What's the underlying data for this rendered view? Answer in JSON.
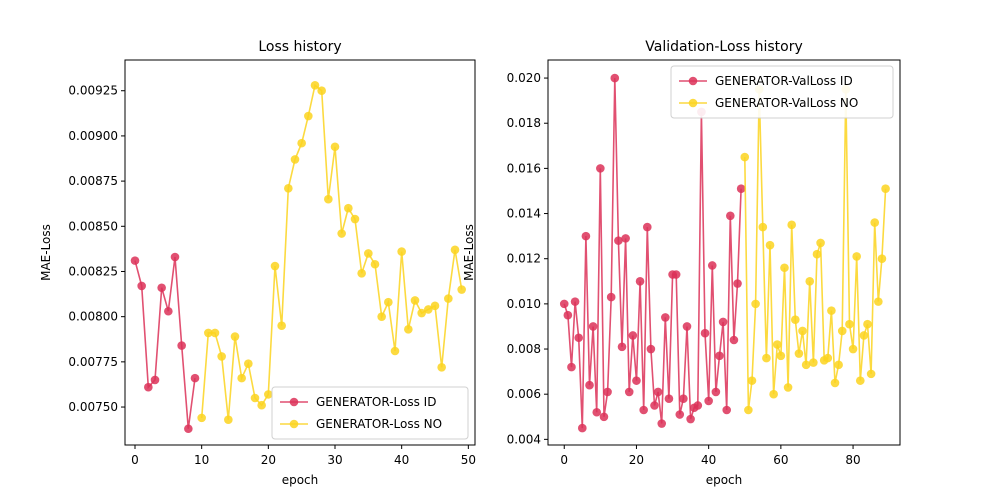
{
  "colors": {
    "id": "#dc3158",
    "no": "#fcd31f"
  },
  "chart_data": [
    {
      "type": "line",
      "title": "Loss history",
      "xlabel": "epoch",
      "ylabel": "MAE-Loss",
      "xlim": [
        -1.5,
        51
      ],
      "ylim": [
        0.00729,
        0.00942
      ],
      "xticks": [
        0,
        10,
        20,
        30,
        40,
        50
      ],
      "yticks": [
        0.0075,
        0.00775,
        0.008,
        0.00825,
        0.0085,
        0.00875,
        0.009,
        0.00925
      ],
      "ytick_labels": [
        "0.00750",
        "0.00775",
        "0.00800",
        "0.00825",
        "0.00850",
        "0.00875",
        "0.00900",
        "0.00925"
      ],
      "legend": "lower-right",
      "series": [
        {
          "name": "GENERATOR-Loss ID",
          "color_key": "id",
          "x": [
            0,
            1,
            2,
            3,
            4,
            5,
            6,
            7,
            8,
            9
          ],
          "y": [
            0.00831,
            0.00817,
            0.00761,
            0.00765,
            0.00816,
            0.00803,
            0.00833,
            0.00784,
            0.00738,
            0.00766
          ]
        },
        {
          "name": "GENERATOR-Loss NO",
          "color_key": "no",
          "x": [
            10,
            11,
            12,
            13,
            14,
            15,
            16,
            17,
            18,
            19,
            20,
            21,
            22,
            23,
            24,
            25,
            26,
            27,
            28,
            29,
            30,
            31,
            32,
            33,
            34,
            35,
            36,
            37,
            38,
            39,
            40,
            41,
            42,
            43,
            44,
            45,
            46,
            47,
            48,
            49
          ],
          "y": [
            0.00744,
            0.00791,
            0.00791,
            0.00778,
            0.00743,
            0.00789,
            0.00766,
            0.00774,
            0.00755,
            0.00751,
            0.00757,
            0.00828,
            0.00795,
            0.00871,
            0.00887,
            0.00896,
            0.00911,
            0.00928,
            0.00925,
            0.00865,
            0.00894,
            0.00846,
            0.0086,
            0.00854,
            0.00824,
            0.00835,
            0.00829,
            0.008,
            0.00808,
            0.00781,
            0.00836,
            0.00793,
            0.00809,
            0.00802,
            0.00804,
            0.00806,
            0.00772,
            0.0081,
            0.00837,
            0.00815
          ]
        }
      ]
    },
    {
      "type": "line",
      "title": "Validation-Loss history",
      "xlabel": "epoch",
      "ylabel": "MAE-Loss",
      "xlim": [
        -4.5,
        93
      ],
      "ylim": [
        0.00375,
        0.0208
      ],
      "xticks": [
        0,
        20,
        40,
        60,
        80
      ],
      "yticks": [
        0.004,
        0.006,
        0.008,
        0.01,
        0.012,
        0.014,
        0.016,
        0.018,
        0.02
      ],
      "ytick_labels": [
        "0.004",
        "0.006",
        "0.008",
        "0.010",
        "0.012",
        "0.014",
        "0.016",
        "0.018",
        "0.020"
      ],
      "legend": "upper-right",
      "series": [
        {
          "name": "GENERATOR-ValLoss ID",
          "color_key": "id",
          "x": [
            0,
            1,
            2,
            3,
            4,
            5,
            6,
            7,
            8,
            9,
            10,
            11,
            12,
            13,
            14,
            15,
            16,
            17,
            18,
            19,
            20,
            21,
            22,
            23,
            24,
            25,
            26,
            27,
            28,
            29,
            30,
            31,
            32,
            33,
            34,
            35,
            36,
            37,
            38,
            39,
            40,
            41,
            42,
            43,
            44,
            45,
            46,
            47,
            48,
            49
          ],
          "y": [
            0.01,
            0.0095,
            0.0072,
            0.0101,
            0.0085,
            0.0045,
            0.013,
            0.0064,
            0.009,
            0.0052,
            0.016,
            0.005,
            0.0061,
            0.0103,
            0.02,
            0.0128,
            0.0081,
            0.0129,
            0.0061,
            0.0086,
            0.0066,
            0.011,
            0.0053,
            0.0134,
            0.008,
            0.0055,
            0.0061,
            0.0047,
            0.0094,
            0.0058,
            0.0113,
            0.0113,
            0.0051,
            0.0058,
            0.009,
            0.0049,
            0.0054,
            0.0055,
            0.0185,
            0.0087,
            0.0057,
            0.0117,
            0.0061,
            0.0077,
            0.0092,
            0.0053,
            0.0139,
            0.0084,
            0.0109,
            0.0151
          ]
        },
        {
          "name": "GENERATOR-ValLoss NO",
          "color_key": "no",
          "x": [
            50,
            51,
            52,
            53,
            54,
            55,
            56,
            57,
            58,
            59,
            60,
            61,
            62,
            63,
            64,
            65,
            66,
            67,
            68,
            69,
            70,
            71,
            72,
            73,
            74,
            75,
            76,
            77,
            78,
            79,
            80,
            81,
            82,
            83,
            84,
            85,
            86,
            87,
            88,
            89
          ],
          "y": [
            0.0165,
            0.0053,
            0.0066,
            0.01,
            0.0195,
            0.0134,
            0.0076,
            0.0126,
            0.006,
            0.0082,
            0.0077,
            0.0116,
            0.0063,
            0.0135,
            0.0093,
            0.0078,
            0.0088,
            0.0073,
            0.011,
            0.0074,
            0.0122,
            0.0127,
            0.0075,
            0.0076,
            0.0097,
            0.0065,
            0.0073,
            0.0088,
            0.0195,
            0.0091,
            0.008,
            0.0121,
            0.0066,
            0.0086,
            0.0091,
            0.0069,
            0.0136,
            0.0101,
            0.012,
            0.0151
          ]
        }
      ]
    }
  ]
}
